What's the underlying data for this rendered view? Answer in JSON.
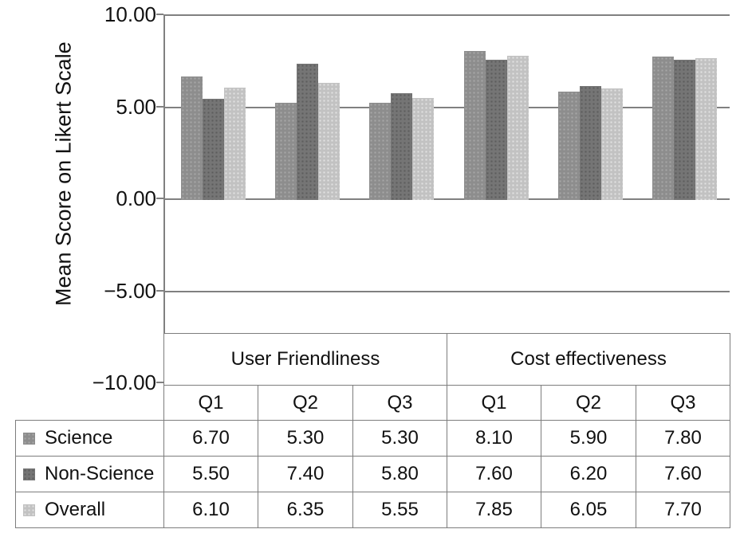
{
  "axis": {
    "title": "Mean Score on Likert Scale",
    "tick_labels": [
      "10.00",
      "5.00",
      "0.00",
      "−5.00",
      "−10.00"
    ],
    "tick_values": [
      10,
      5,
      0,
      -5,
      -10
    ]
  },
  "chart_data": {
    "type": "bar",
    "title": "",
    "ylabel": "Mean Score on Likert Scale",
    "ylim": [
      -10,
      10
    ],
    "yticks": [
      10,
      5,
      0,
      -5,
      -10
    ],
    "grid": true,
    "legend_position": "table-left",
    "group_headers": [
      "User Friendliness",
      "Cost effectiveness"
    ],
    "categories": [
      "Q1",
      "Q2",
      "Q3",
      "Q1",
      "Q2",
      "Q3"
    ],
    "series": [
      {
        "name": "Science",
        "values": [
          6.7,
          5.3,
          5.3,
          8.1,
          5.9,
          7.8
        ],
        "color": "#8d8d8d",
        "dot_color": "#a8a8a8"
      },
      {
        "name": "Non-Science",
        "values": [
          5.5,
          7.4,
          5.8,
          7.6,
          6.2,
          7.6
        ],
        "color": "#757575",
        "dot_color": "#5c5c5c"
      },
      {
        "name": "Overall",
        "values": [
          6.1,
          6.35,
          5.55,
          7.85,
          6.05,
          7.7
        ],
        "color": "#c2c2c2",
        "dot_color": "#e2e2e2"
      }
    ],
    "value_format": "0.00"
  },
  "colors": {
    "grid": "#808080",
    "table_border": "#7d7d7d",
    "text": "#111111",
    "background": "#ffffff"
  }
}
